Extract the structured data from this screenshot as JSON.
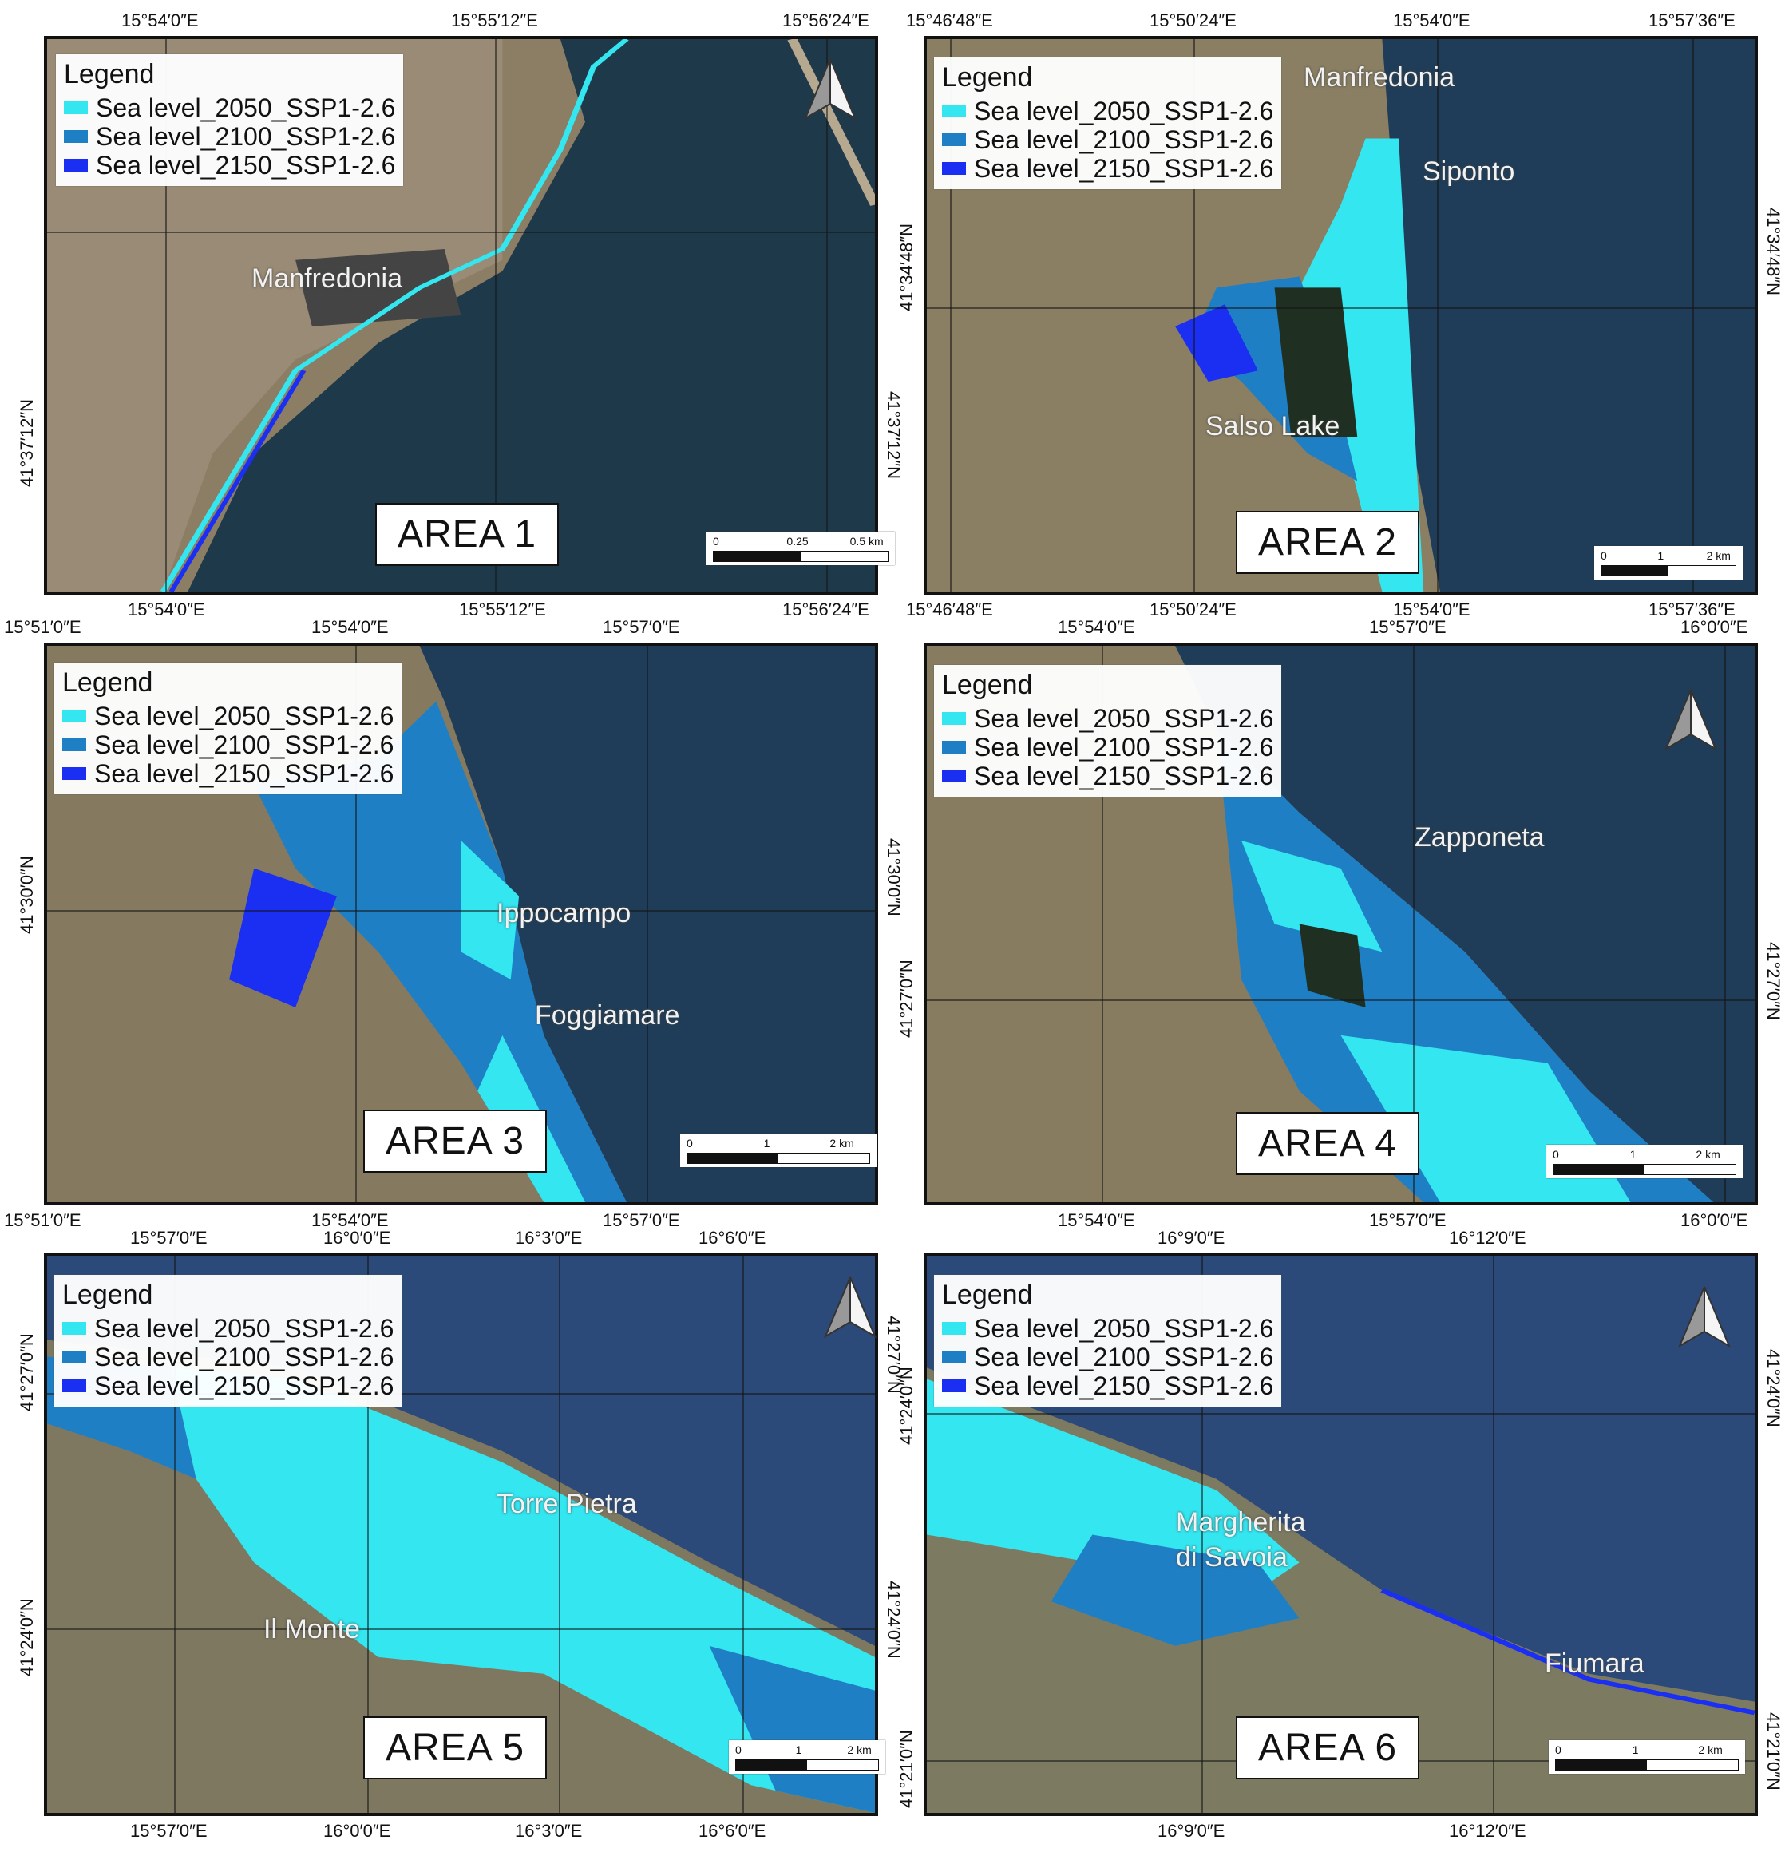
{
  "legend": {
    "title": "Legend",
    "items": [
      {
        "label": "Sea level_2050_SSP1-2.6",
        "color": "#33e6f0"
      },
      {
        "label": "Sea level_2100_SSP1-2.6",
        "color": "#1f7fc4"
      },
      {
        "label": "Sea level_2150_SSP1-2.6",
        "color": "#1a2ff2"
      }
    ]
  },
  "panels": [
    {
      "area_label": "AREA 1",
      "places": [
        "Manfredonia"
      ],
      "scale": {
        "ticks": [
          "0",
          "0.25",
          "0.5 km"
        ]
      },
      "north_arrow": true,
      "top_coords": [
        "15°54′0″E",
        "15°55′12″E",
        "15°56′24″E"
      ],
      "bottom_coords": [
        "15°54′0″E",
        "15°55′12″E",
        "15°56′24″E"
      ],
      "left_coords": [
        "41°37′12″N"
      ],
      "right_coords": [
        "41°37′12″N"
      ]
    },
    {
      "area_label": "AREA 2",
      "places": [
        "Manfredonia",
        "Siponto",
        "Salso Lake"
      ],
      "scale": {
        "ticks": [
          "0",
          "1",
          "2 km"
        ]
      },
      "north_arrow": false,
      "top_coords": [
        "15°46′48″E",
        "15°50′24″E",
        "15°54′0″E",
        "15°57′36″E"
      ],
      "bottom_coords": [
        "15°46′48″E",
        "15°50′24″E",
        "15°54′0″E",
        "15°57′36″E"
      ],
      "left_coords": [
        "41°34′48″N"
      ],
      "right_coords": [
        "41°34′48″N"
      ]
    },
    {
      "area_label": "AREA 3",
      "places": [
        "Ippocampo",
        "Foggiamare"
      ],
      "scale": {
        "ticks": [
          "0",
          "1",
          "2 km"
        ]
      },
      "north_arrow": false,
      "top_coords": [
        "15°51′0″E",
        "15°54′0″E",
        "15°57′0″E"
      ],
      "bottom_coords": [
        "15°51′0″E",
        "15°54′0″E",
        "15°57′0″E"
      ],
      "left_coords": [
        "41°30′0″N"
      ],
      "right_coords": [
        "41°30′0″N"
      ]
    },
    {
      "area_label": "AREA 4",
      "places": [
        "Zapponeta"
      ],
      "scale": {
        "ticks": [
          "0",
          "1",
          "2 km"
        ]
      },
      "north_arrow": true,
      "top_coords": [
        "15°54′0″E",
        "15°57′0″E",
        "16°0′0″E"
      ],
      "bottom_coords": [
        "15°54′0″E",
        "15°57′0″E",
        "16°0′0″E"
      ],
      "left_coords": [
        "41°27′0″N"
      ],
      "right_coords": [
        "41°27′0″N"
      ]
    },
    {
      "area_label": "AREA 5",
      "places": [
        "Torre Pietra",
        "Il Monte"
      ],
      "scale": {
        "ticks": [
          "0",
          "1",
          "2 km"
        ]
      },
      "north_arrow": true,
      "top_coords": [
        "15°57′0″E",
        "16°0′0″E",
        "16°3′0″E",
        "16°6′0″E"
      ],
      "bottom_coords": [
        "15°57′0″E",
        "16°0′0″E",
        "16°3′0″E",
        "16°6′0″E"
      ],
      "left_coords": [
        "41°27′0″N",
        "41°24′0″N"
      ],
      "right_coords": [
        "41°27′0″N",
        "41°24′0″N"
      ]
    },
    {
      "area_label": "AREA 6",
      "places": [
        "Margherita\ndi Savoia",
        "Fiumara"
      ],
      "scale": {
        "ticks": [
          "0",
          "1",
          "2 km"
        ]
      },
      "north_arrow": true,
      "top_coords": [
        "16°9′0″E",
        "16°12′0″E"
      ],
      "bottom_coords": [
        "16°9′0″E",
        "16°12′0″E"
      ],
      "left_coords": [
        "41°24′0″N",
        "41°21′0″N"
      ],
      "right_coords": [
        "41°24′0″N",
        "41°21′0″N"
      ]
    }
  ]
}
